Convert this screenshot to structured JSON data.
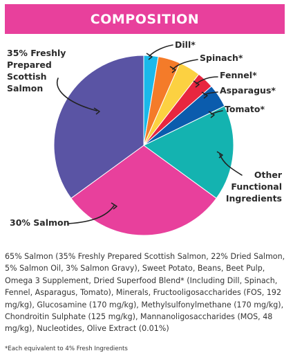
{
  "header": {
    "title": "COMPOSITION"
  },
  "chart_data": {
    "type": "pie",
    "title": "COMPOSITION",
    "slices": [
      {
        "label": "Dill*",
        "value": 2.6,
        "color": "#1ab9ea"
      },
      {
        "label": "Spinach*",
        "value": 4.0,
        "color": "#f47b29"
      },
      {
        "label": "Fennel*",
        "value": 3.9,
        "color": "#fcd141"
      },
      {
        "label": "Asparagus*",
        "value": 3.1,
        "color": "#e8263f"
      },
      {
        "label": "Tomato*",
        "value": 4.2,
        "color": "#0b5cad"
      },
      {
        "label": "Other Functional Ingredients",
        "value": 17.2,
        "color": "#14b3b0"
      },
      {
        "label": "30% Salmon",
        "value": 30,
        "color": "#e8409c"
      },
      {
        "label": "35% Freshly Prepared Scottish Salmon",
        "value": 35,
        "color": "#5a54a4"
      }
    ]
  },
  "composition_text": "65% Salmon (35% Freshly Prepared Scottish Salmon, 22% Dried Salmon, 5% Salmon Oil, 3% Salmon Gravy), Sweet Potato, Beans, Beet Pulp, Omega 3 Supplement, Dried Superfood Blend* (Including Dill, Spinach, Fennel, Asparagus, Tomato), Minerals, Fructooligosaccharides (FOS, 192 mg/kg), Glucosamine (170 mg/kg), Methylsulfonylmethane (170 mg/kg), Chondroitin Sulphate (125 mg/kg), Mannanoligosaccharides (MOS, 48 mg/kg), Nucleotides, Olive Extract (0.01%)",
  "footnote": "*Each equivalent to 4% Fresh Ingredients"
}
